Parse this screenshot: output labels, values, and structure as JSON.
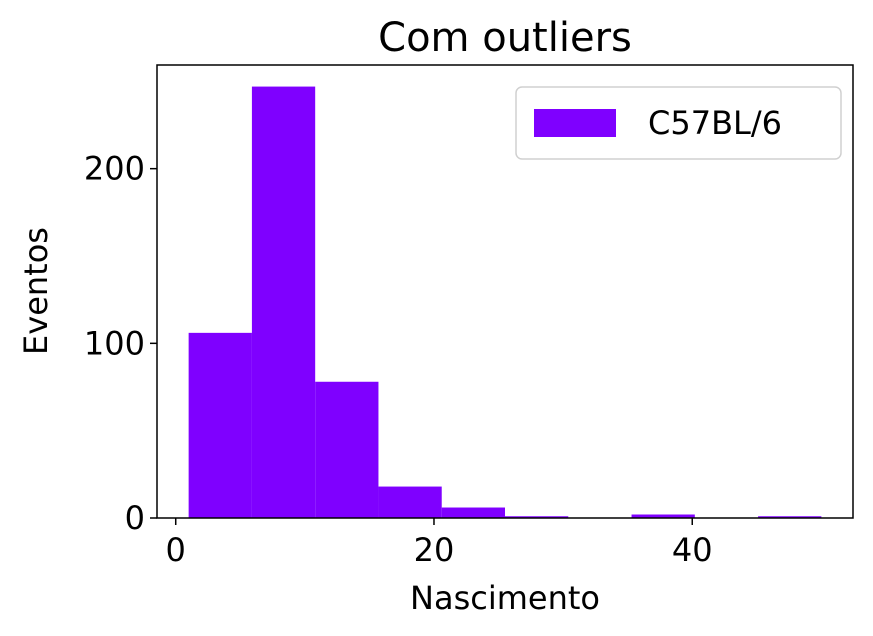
{
  "chart_data": {
    "type": "histogram",
    "title": "Com outliers",
    "xlabel": "Nascimento",
    "ylabel": "Eventos",
    "bins": [
      1,
      5.9,
      10.8,
      15.7,
      20.6,
      25.5,
      30.4,
      35.3,
      40.2,
      45.1,
      50
    ],
    "series": [
      {
        "name": "C57BL/6",
        "color": "#7f00ff",
        "values": [
          106,
          247,
          78,
          18,
          6,
          1,
          0,
          2,
          0,
          1
        ]
      }
    ],
    "xlim": [
      -1.45,
      52.45
    ],
    "xticks": [
      0,
      20,
      40
    ],
    "ylim": [
      0,
      259.35
    ],
    "yticks": [
      0,
      100,
      200
    ],
    "legend": "upper right",
    "grid": false
  }
}
